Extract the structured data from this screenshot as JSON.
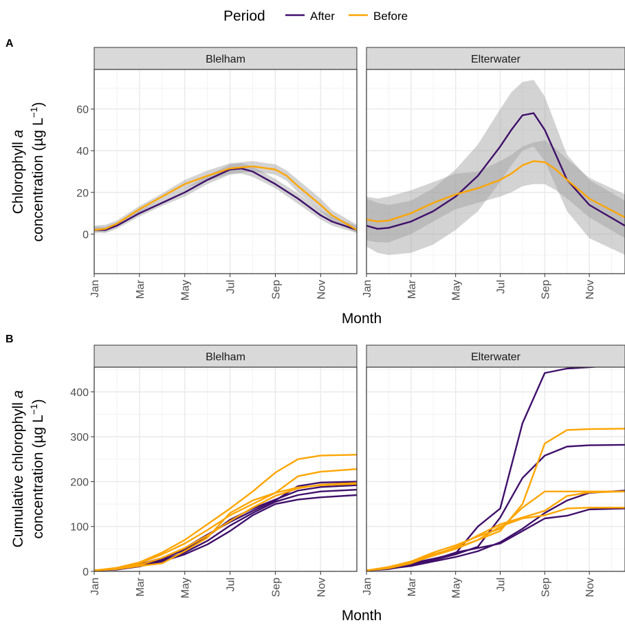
{
  "legend": {
    "title": "Period",
    "items": [
      {
        "label": "After",
        "color": "#3f0f6b"
      },
      {
        "label": "Before",
        "color": "#ffa500"
      }
    ],
    "placement": "top"
  },
  "colors": {
    "after": "#3f0f6b",
    "before": "#ffa500",
    "ribbon": "#9e9e9e",
    "strip": "#d9d9d9",
    "grid": "#ebebeb",
    "panel_border": "#333333"
  },
  "chart_data": [
    {
      "panel_tag": "A",
      "type": "line",
      "xlabel": "Month",
      "ylabel_parts": [
        "Chlorophyll ",
        "a",
        "concentration (µg L",
        "−1",
        ")"
      ],
      "xlim": [
        1,
        12.6
      ],
      "ylim": [
        -19,
        79
      ],
      "x_ticks": [
        1,
        3,
        5,
        7,
        9,
        11
      ],
      "x_tick_labels": [
        "Jan",
        "Mar",
        "May",
        "Jul",
        "Sep",
        "Nov"
      ],
      "y_ticks": [
        0,
        20,
        40,
        60
      ],
      "y_tick_labels": [
        "0",
        "20",
        "40",
        "60"
      ],
      "grid": true,
      "facets": [
        {
          "strip_label": "Blelham",
          "series": [
            {
              "name": "After",
              "color": "#3f0f6b",
              "x": [
                1,
                1.5,
                2,
                2.5,
                3,
                4,
                5,
                6,
                7,
                7.5,
                8,
                9,
                10,
                11,
                11.5,
                12.6
              ],
              "y": [
                2,
                2,
                4,
                7,
                10,
                15,
                20,
                26,
                31,
                31.5,
                30,
                24,
                17,
                9,
                6,
                2
              ],
              "band_lo": [
                1,
                0.5,
                2.5,
                5.5,
                8.5,
                13.5,
                18,
                24,
                28.5,
                29,
                27.5,
                22,
                14.5,
                7,
                4,
                0.5
              ],
              "band_hi": [
                3.5,
                3.5,
                5.5,
                8.5,
                11.5,
                16.5,
                22,
                28,
                33.5,
                34,
                32.5,
                26.5,
                19.5,
                11.5,
                8.5,
                4
              ]
            },
            {
              "name": "Before",
              "color": "#ffa500",
              "x": [
                1,
                1.5,
                2,
                2.5,
                3,
                4,
                5,
                6,
                7,
                7.5,
                8,
                9,
                9.5,
                10,
                11,
                11.5,
                12.6
              ],
              "y": [
                2,
                2.5,
                5,
                8.5,
                12,
                18,
                24,
                28,
                31.5,
                32,
                32.5,
                31,
                28,
                23,
                14,
                9,
                2
              ],
              "band_lo": [
                0.5,
                1,
                3.5,
                7,
                10.5,
                16.5,
                22,
                25.5,
                29,
                29.5,
                30,
                28.5,
                25.5,
                20,
                11,
                6.5,
                0.5
              ],
              "band_hi": [
                4,
                4.5,
                6.5,
                10,
                13.5,
                19.5,
                26,
                30.5,
                34,
                34.5,
                35,
                33.5,
                30.5,
                26,
                17,
                11.5,
                4.5
              ]
            }
          ]
        },
        {
          "strip_label": "Elterwater",
          "series": [
            {
              "name": "After",
              "color": "#3f0f6b",
              "x": [
                1,
                1.5,
                2,
                3,
                4,
                5,
                6,
                7,
                7.5,
                8,
                8.5,
                9,
                9.5,
                10,
                11,
                12.6
              ],
              "y": [
                4,
                2.5,
                3,
                6,
                11,
                18,
                28,
                42,
                50,
                57,
                58,
                50,
                38,
                26,
                14,
                4
              ],
              "band_lo": [
                -6,
                -9,
                -10,
                -9,
                -5,
                2,
                11,
                25,
                33,
                40,
                42,
                35,
                23,
                11,
                -2,
                -10
              ],
              "band_hi": [
                17,
                15,
                14,
                16,
                22,
                31,
                43,
                60,
                68,
                73,
                74,
                66,
                52,
                38,
                26,
                16
              ]
            },
            {
              "name": "Before",
              "color": "#ffa500",
              "x": [
                1,
                1.5,
                2,
                3,
                4,
                5,
                6,
                7,
                7.5,
                8,
                8.5,
                9,
                9.5,
                10,
                11,
                12.6
              ],
              "y": [
                7,
                6,
                6.5,
                10,
                15,
                19,
                22,
                26,
                29,
                33,
                35,
                34.5,
                31,
                26,
                17,
                8
              ],
              "band_lo": [
                -3,
                -4,
                -4,
                0,
                6,
                12,
                15,
                18,
                20,
                23,
                24,
                24,
                21,
                17,
                8,
                -2
              ],
              "band_hi": [
                18,
                17,
                18,
                21,
                25,
                29,
                30,
                35,
                38,
                42,
                44,
                45,
                41,
                36,
                27,
                19
              ]
            }
          ]
        }
      ]
    },
    {
      "panel_tag": "B",
      "type": "line",
      "xlabel": "Month",
      "ylabel_parts": [
        "Cumulative chlorophyll ",
        "a",
        "concentration (µg L",
        "−1",
        ")"
      ],
      "xlim": [
        1,
        12.6
      ],
      "ylim": [
        0,
        455
      ],
      "x_ticks": [
        1,
        3,
        5,
        7,
        9,
        11
      ],
      "x_tick_labels": [
        "Jan",
        "Mar",
        "May",
        "Jul",
        "Sep",
        "Nov"
      ],
      "y_ticks": [
        0,
        100,
        200,
        300,
        400
      ],
      "y_tick_labels": [
        "0",
        "100",
        "200",
        "300",
        "400"
      ],
      "grid": true,
      "facets": [
        {
          "strip_label": "Blelham",
          "series": [
            {
              "name": "After",
              "color": "#3f0f6b",
              "x": [
                1,
                2,
                3,
                4,
                5,
                6,
                7,
                8,
                9,
                10,
                11,
                12.6
              ],
              "y": [
                2,
                6,
                14,
                28,
                48,
                78,
                115,
                140,
                160,
                180,
                188,
                192
              ]
            },
            {
              "name": "After",
              "color": "#3f0f6b",
              "x": [
                1,
                2,
                3,
                4,
                5,
                6,
                7,
                8,
                9,
                10,
                11,
                12.6
              ],
              "y": [
                2,
                5,
                13,
                25,
                42,
                68,
                102,
                130,
                155,
                170,
                178,
                182
              ]
            },
            {
              "name": "After",
              "color": "#3f0f6b",
              "x": [
                1,
                2,
                3,
                4,
                5,
                6,
                7,
                8,
                9,
                10,
                11,
                12.6
              ],
              "y": [
                2,
                7,
                15,
                30,
                52,
                82,
                110,
                135,
                158,
                190,
                198,
                200
              ]
            },
            {
              "name": "After",
              "color": "#3f0f6b",
              "x": [
                1,
                2,
                3,
                4,
                5,
                6,
                7,
                8,
                9,
                10,
                11,
                12.6
              ],
              "y": [
                2,
                4,
                11,
                22,
                38,
                60,
                90,
                125,
                150,
                160,
                165,
                170
              ]
            },
            {
              "name": "Before",
              "color": "#ffa500",
              "x": [
                1,
                2,
                3,
                4,
                5,
                6,
                7,
                8,
                9,
                10,
                11,
                12.6
              ],
              "y": [
                2,
                8,
                20,
                42,
                70,
                105,
                140,
                178,
                220,
                250,
                258,
                260
              ]
            },
            {
              "name": "Before",
              "color": "#ffa500",
              "x": [
                1,
                2,
                3,
                4,
                5,
                6,
                7,
                8,
                9,
                10,
                11,
                12.6
              ],
              "y": [
                2,
                7,
                18,
                38,
                62,
                92,
                125,
                150,
                175,
                212,
                222,
                228
              ]
            },
            {
              "name": "Before",
              "color": "#ffa500",
              "x": [
                1,
                2,
                3,
                4,
                5,
                6,
                7,
                8,
                9,
                10,
                11,
                12.6
              ],
              "y": [
                2,
                6,
                14,
                30,
                52,
                80,
                112,
                142,
                168,
                185,
                193,
                197
              ]
            },
            {
              "name": "Before",
              "color": "#ffa500",
              "x": [
                1,
                2,
                3,
                4,
                5,
                6,
                7,
                8,
                9,
                10,
                11,
                12.6
              ],
              "y": [
                2,
                5,
                12,
                18,
                45,
                75,
                130,
                158,
                175,
                187,
                192,
                195
              ]
            }
          ]
        },
        {
          "strip_label": "Elterwater",
          "series": [
            {
              "name": "After",
              "color": "#3f0f6b",
              "x": [
                1,
                2,
                3,
                4,
                5,
                6,
                7,
                8,
                9,
                10,
                11,
                11.3
              ],
              "y": [
                2,
                8,
                18,
                28,
                40,
                100,
                140,
                330,
                442,
                452,
                455,
                456
              ]
            },
            {
              "name": "After",
              "color": "#3f0f6b",
              "x": [
                1,
                2,
                3,
                4,
                5,
                6,
                7,
                8,
                9,
                10,
                11,
                12.6
              ],
              "y": [
                2,
                7,
                15,
                25,
                38,
                55,
                120,
                208,
                258,
                278,
                281,
                282
              ]
            },
            {
              "name": "After",
              "color": "#3f0f6b",
              "x": [
                1,
                2,
                3,
                4,
                5,
                6,
                7,
                8,
                9,
                10,
                11,
                12.6
              ],
              "y": [
                2,
                6,
                12,
                22,
                32,
                45,
                65,
                95,
                130,
                158,
                175,
                180
              ]
            },
            {
              "name": "After",
              "color": "#3f0f6b",
              "x": [
                1,
                2,
                3,
                4,
                5,
                6,
                7,
                8,
                9,
                10,
                11,
                12.6
              ],
              "y": [
                2,
                5,
                14,
                26,
                42,
                52,
                62,
                90,
                118,
                124,
                138,
                140
              ]
            },
            {
              "name": "Before",
              "color": "#ffa500",
              "x": [
                1,
                2,
                3,
                4,
                5,
                6,
                7,
                8,
                9,
                10,
                11,
                12.6
              ],
              "y": [
                2,
                9,
                20,
                38,
                52,
                70,
                90,
                150,
                285,
                315,
                317,
                318
              ]
            },
            {
              "name": "Before",
              "color": "#ffa500",
              "x": [
                1,
                2,
                3,
                4,
                5,
                6,
                7,
                8,
                9,
                10,
                11,
                12.6
              ],
              "y": [
                2,
                10,
                22,
                42,
                58,
                78,
                95,
                142,
                178,
                178,
                178,
                178
              ]
            },
            {
              "name": "Before",
              "color": "#ffa500",
              "x": [
                1,
                2,
                3,
                4,
                5,
                6,
                7,
                8,
                9,
                10,
                11,
                12.6
              ],
              "y": [
                2,
                8,
                19,
                35,
                50,
                70,
                100,
                118,
                125,
                140,
                142,
                142
              ]
            },
            {
              "name": "Before",
              "color": "#ffa500",
              "x": [
                1,
                2,
                3,
                4,
                5,
                6,
                7,
                8,
                9,
                10,
                11,
                12.6
              ],
              "y": [
                2,
                7,
                18,
                36,
                54,
                80,
                105,
                120,
                135,
                168,
                176,
                178
              ]
            }
          ]
        }
      ]
    }
  ]
}
